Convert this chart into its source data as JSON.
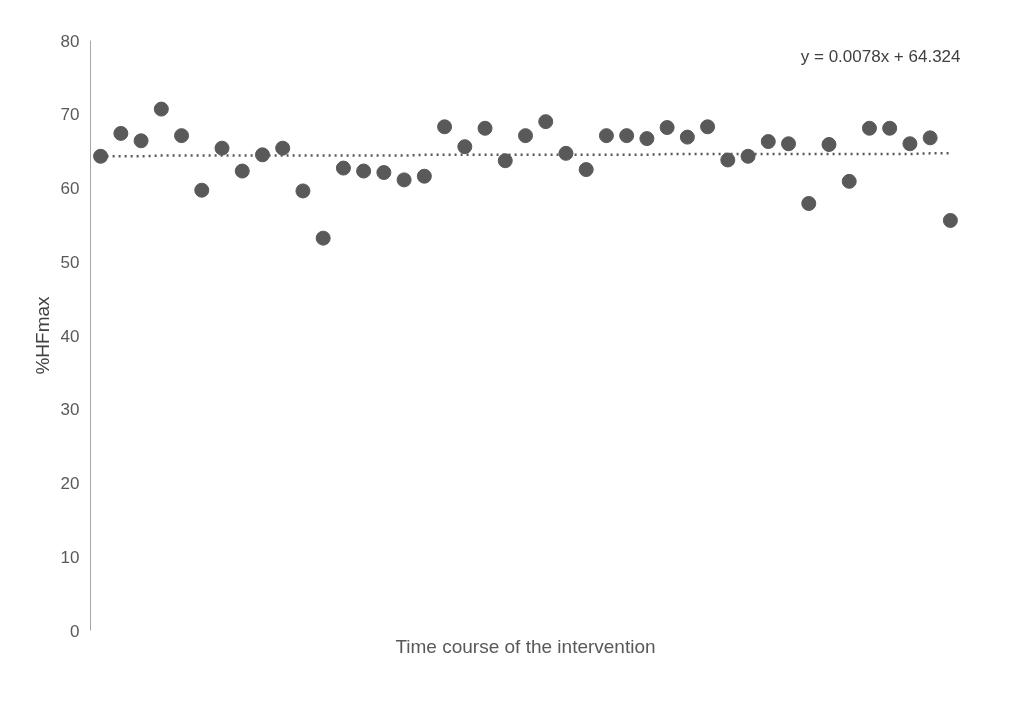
{
  "chart_data": {
    "type": "scatter",
    "xlabel": "Time course of the intervention",
    "ylabel": "%HFmax",
    "categories": [
      null,
      null,
      null,
      null,
      null,
      null,
      null,
      null,
      null,
      null,
      null,
      null,
      null,
      null,
      null,
      null,
      null,
      null,
      null,
      null,
      null,
      null,
      null,
      null,
      null,
      null,
      null,
      null,
      null,
      null,
      null,
      null,
      null,
      null,
      null,
      null,
      null,
      null,
      null,
      null,
      null,
      null,
      null
    ],
    "ylim": [
      0,
      80
    ],
    "yticks": [
      0,
      10,
      20,
      30,
      40,
      50,
      60,
      70,
      80
    ],
    "tick_labels": "y",
    "grid": false,
    "series": [
      {
        "color": "#595959",
        "marker": "circle",
        "values": [
          64.3,
          67.4,
          66.4,
          70.7,
          67.1,
          59.7,
          65.4,
          62.3,
          64.5,
          65.4,
          59.6,
          53.2,
          62.7,
          62.3,
          62.1,
          61.1,
          61.6,
          68.3,
          65.6,
          68.1,
          63.7,
          67.1,
          69.0,
          64.7,
          62.5,
          67.1,
          67.1,
          66.7,
          68.2,
          66.9,
          68.3,
          63.8,
          64.3,
          66.3,
          66.0,
          57.9,
          65.9,
          60.9,
          68.1,
          68.1,
          66.0,
          66.8,
          55.6
        ]
      },
      {
        "type": "line",
        "color": "#595959",
        "line_style": "dotted",
        "marker": "none",
        "values": [
          64.3,
          64.3,
          64.3,
          64.4,
          64.4,
          64.4,
          64.4,
          64.4,
          64.4,
          64.4,
          64.4,
          64.4,
          64.4,
          64.4,
          64.4,
          64.4,
          64.5,
          64.5,
          64.5,
          64.5,
          64.5,
          64.5,
          64.5,
          64.5,
          64.5,
          64.5,
          64.5,
          64.5,
          64.6,
          64.6,
          64.6,
          64.6,
          64.6,
          64.6,
          64.6,
          64.6,
          64.6,
          64.6,
          64.6,
          64.6,
          64.6,
          64.7,
          64.7
        ]
      }
    ],
    "annotations": [
      "y = 0.0078x + 64.324"
    ]
  }
}
